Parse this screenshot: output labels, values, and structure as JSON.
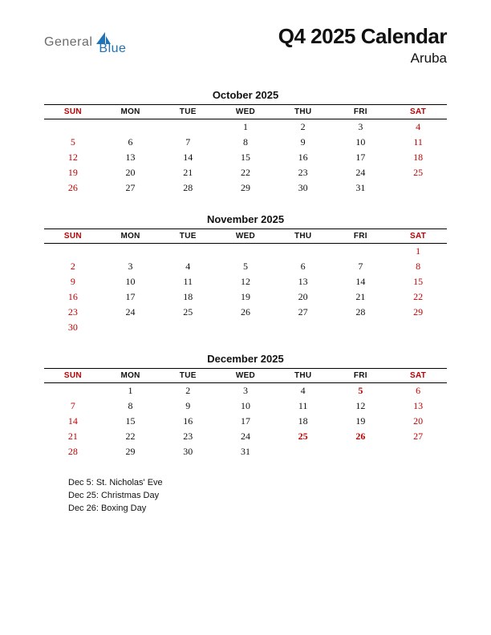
{
  "logo": {
    "general": "General",
    "blue": "Blue",
    "shape_color": "#2173b8"
  },
  "title": "Q4 2025 Calendar",
  "subtitle": "Aruba",
  "colors": {
    "weekend": "#c00000",
    "text": "#111111",
    "bg": "#ffffff"
  },
  "day_headers": [
    "SUN",
    "MON",
    "TUE",
    "WED",
    "THU",
    "FRI",
    "SAT"
  ],
  "months": [
    {
      "name": "October 2025",
      "weeks": [
        [
          "",
          "",
          "",
          "1",
          "2",
          "3",
          "4"
        ],
        [
          "5",
          "6",
          "7",
          "8",
          "9",
          "10",
          "11"
        ],
        [
          "12",
          "13",
          "14",
          "15",
          "16",
          "17",
          "18"
        ],
        [
          "19",
          "20",
          "21",
          "22",
          "23",
          "24",
          "25"
        ],
        [
          "26",
          "27",
          "28",
          "29",
          "30",
          "31",
          ""
        ]
      ],
      "holidays": []
    },
    {
      "name": "November 2025",
      "weeks": [
        [
          "",
          "",
          "",
          "",
          "",
          "",
          "1"
        ],
        [
          "2",
          "3",
          "4",
          "5",
          "6",
          "7",
          "8"
        ],
        [
          "9",
          "10",
          "11",
          "12",
          "13",
          "14",
          "15"
        ],
        [
          "16",
          "17",
          "18",
          "19",
          "20",
          "21",
          "22"
        ],
        [
          "23",
          "24",
          "25",
          "26",
          "27",
          "28",
          "29"
        ],
        [
          "30",
          "",
          "",
          "",
          "",
          "",
          ""
        ]
      ],
      "holidays": []
    },
    {
      "name": "December 2025",
      "weeks": [
        [
          "",
          "1",
          "2",
          "3",
          "4",
          "5",
          "6"
        ],
        [
          "7",
          "8",
          "9",
          "10",
          "11",
          "12",
          "13"
        ],
        [
          "14",
          "15",
          "16",
          "17",
          "18",
          "19",
          "20"
        ],
        [
          "21",
          "22",
          "23",
          "24",
          "25",
          "26",
          "27"
        ],
        [
          "28",
          "29",
          "30",
          "31",
          "",
          "",
          ""
        ]
      ],
      "holidays": [
        "5",
        "25",
        "26"
      ]
    }
  ],
  "holiday_list": [
    "Dec 5: St. Nicholas' Eve",
    "Dec 25: Christmas Day",
    "Dec 26: Boxing Day"
  ]
}
